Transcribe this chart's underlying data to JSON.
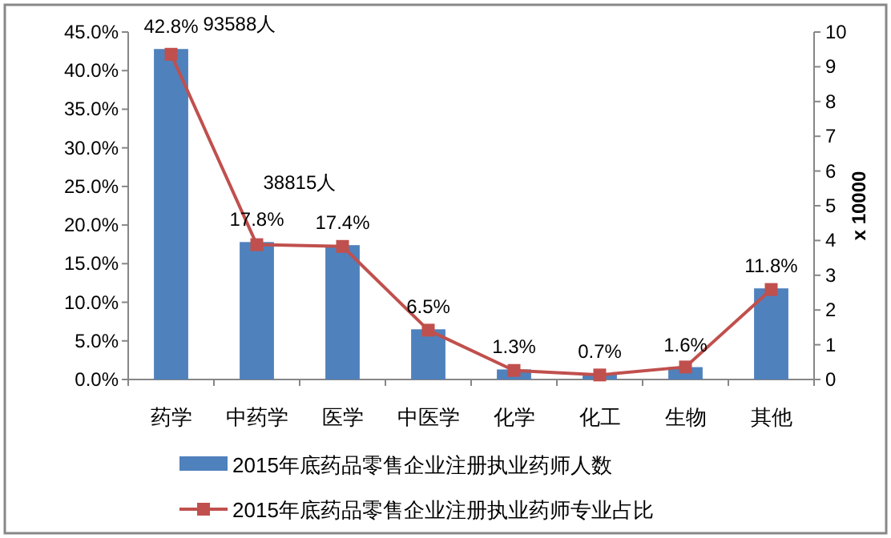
{
  "chart_data": {
    "type": "bar",
    "categories": [
      "药学",
      "中药学",
      "医学",
      "中医学",
      "化学",
      "化工",
      "生物",
      "其他"
    ],
    "series": [
      {
        "name": "2015年底药品零售企业注册执业药师人数",
        "color": "#4f81bd",
        "values": [
          42.8,
          17.8,
          17.4,
          6.5,
          1.3,
          0.7,
          1.6,
          11.8
        ],
        "value_labels": [
          "42.8%",
          "17.8%",
          "17.4%",
          "6.5%",
          "1.3%",
          "0.7%",
          "1.6%",
          "11.8%"
        ]
      },
      {
        "name": "2015年底药品零售企业注册执业药师专业占比",
        "type": "line",
        "axis": "y2",
        "color": "#c0504d",
        "marker": "square",
        "values": [
          9.36,
          3.88,
          3.83,
          1.42,
          0.26,
          0.13,
          0.36,
          2.59
        ]
      }
    ],
    "ylim": [
      0,
      45
    ],
    "yticks": [
      {
        "value": 0,
        "label": "0.0%"
      },
      {
        "value": 5,
        "label": "5.0%"
      },
      {
        "value": 10,
        "label": "10.0%"
      },
      {
        "value": 15,
        "label": "15.0%"
      },
      {
        "value": 20,
        "label": "20.0%"
      },
      {
        "value": 25,
        "label": "25.0%"
      },
      {
        "value": 30,
        "label": "30.0%"
      },
      {
        "value": 35,
        "label": "35.0%"
      },
      {
        "value": 40,
        "label": "40.0%"
      },
      {
        "value": 45,
        "label": "45.0%"
      }
    ],
    "annotations": [
      "93588人",
      "38815人"
    ],
    "y2lim": [
      0,
      10
    ],
    "y2ticks": [
      0,
      1,
      2,
      3,
      4,
      5,
      6,
      7,
      8,
      9,
      10
    ],
    "y2label": "x 10000",
    "legend": "bottom",
    "grid": false
  }
}
